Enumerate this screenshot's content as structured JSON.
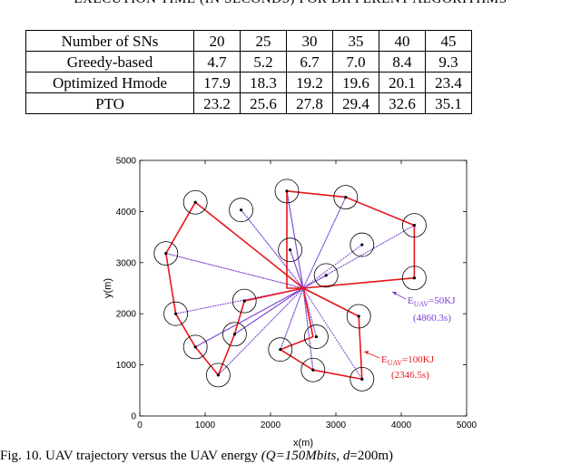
{
  "table": {
    "caption": "EXECUTION TIME (IN SECONDS) FOR DIFFERENT ALGORITHMS",
    "header": [
      "Number of SNs",
      "20",
      "25",
      "30",
      "35",
      "40",
      "45"
    ],
    "rows": [
      {
        "label": "Greedy-based",
        "values": [
          "4.7",
          "5.2",
          "6.7",
          "7.0",
          "8.4",
          "9.3"
        ]
      },
      {
        "label": "Optimized Hmode",
        "values": [
          "17.9",
          "18.3",
          "19.2",
          "19.6",
          "20.1",
          "23.4"
        ]
      },
      {
        "label": "PTO",
        "values": [
          "23.2",
          "25.6",
          "27.8",
          "29.4",
          "32.6",
          "35.1"
        ]
      }
    ]
  },
  "chart_data": {
    "type": "line",
    "xlabel": "x(m)",
    "ylabel": "y(m)",
    "xlim": [
      0,
      5000
    ],
    "ylim": [
      0,
      5000
    ],
    "xticks": [
      "0",
      "1000",
      "2000",
      "3000",
      "4000",
      "5000"
    ],
    "yticks": [
      "0",
      "1000",
      "2000",
      "3000",
      "4000",
      "5000"
    ],
    "grid": false,
    "colors": {
      "red_route": "#e8171c",
      "purple_route": "#7a3fd0",
      "sensor": "#000000"
    },
    "base_station": [
      2500,
      2500
    ],
    "sensors": [
      [
        2250,
        4400
      ],
      [
        3150,
        4280
      ],
      [
        850,
        4180
      ],
      [
        1550,
        4030
      ],
      [
        4200,
        3730
      ],
      [
        3400,
        3350
      ],
      [
        2300,
        3250
      ],
      [
        400,
        3180
      ],
      [
        2850,
        2750
      ],
      [
        4200,
        2700
      ],
      [
        1600,
        2250
      ],
      [
        550,
        2000
      ],
      [
        3350,
        1950
      ],
      [
        1450,
        1600
      ],
      [
        2700,
        1550
      ],
      [
        850,
        1350
      ],
      [
        2150,
        1300
      ],
      [
        2650,
        900
      ],
      [
        1200,
        800
      ],
      [
        3400,
        720
      ]
    ],
    "series": [
      {
        "name": "E_UAV=100KJ",
        "label_main": "E",
        "label_sub": "UAV",
        "label_rest": "=100KJ",
        "time": "(2346.5s)",
        "color": "#e8171c",
        "x": [
          2500,
          2250,
          2250,
          3150,
          4200,
          4200,
          2500,
          850,
          400,
          550,
          850,
          1200,
          1450,
          1600,
          2500,
          2650,
          2150,
          2650,
          3400,
          3350,
          2500
        ],
        "y": [
          2500,
          2500,
          4400,
          4280,
          3730,
          2700,
          2500,
          4180,
          3180,
          2000,
          1350,
          800,
          1600,
          2250,
          2500,
          1550,
          1300,
          900,
          720,
          1950,
          2500
        ]
      },
      {
        "name": "E_UAV=50KJ",
        "label_main": "E",
        "label_sub": "UAV",
        "label_rest": "=50KJ",
        "time": "(4860.3s)",
        "color": "#7a3fd0",
        "x": [
          2500,
          850,
          2500,
          1550,
          2500,
          2250,
          2500,
          3150,
          2500,
          4200,
          2500,
          3400,
          2500,
          2300,
          2500,
          400,
          2500,
          2850,
          2500,
          4200,
          2500,
          1600,
          2500,
          550,
          2500,
          3350,
          2500,
          1450,
          2500,
          2700,
          2500,
          850,
          2500,
          2150,
          2500,
          2650,
          2500,
          1200,
          2500,
          3400,
          2500
        ],
        "y": [
          2500,
          4180,
          2500,
          4030,
          2500,
          4400,
          2500,
          4280,
          2500,
          3730,
          2500,
          3350,
          2500,
          3250,
          2500,
          3180,
          2500,
          2750,
          2500,
          2700,
          2500,
          2250,
          2500,
          2000,
          2500,
          1950,
          2500,
          1600,
          2500,
          1550,
          2500,
          1350,
          2500,
          1300,
          2500,
          900,
          2500,
          800,
          2500,
          720,
          2500
        ]
      }
    ]
  },
  "caption_bottom": {
    "prefix": "Fig. 10.  UAV trajectory versus the UAV energy ",
    "italic": "(Q=150Mbits, d",
    "suffix": "=200m)"
  }
}
